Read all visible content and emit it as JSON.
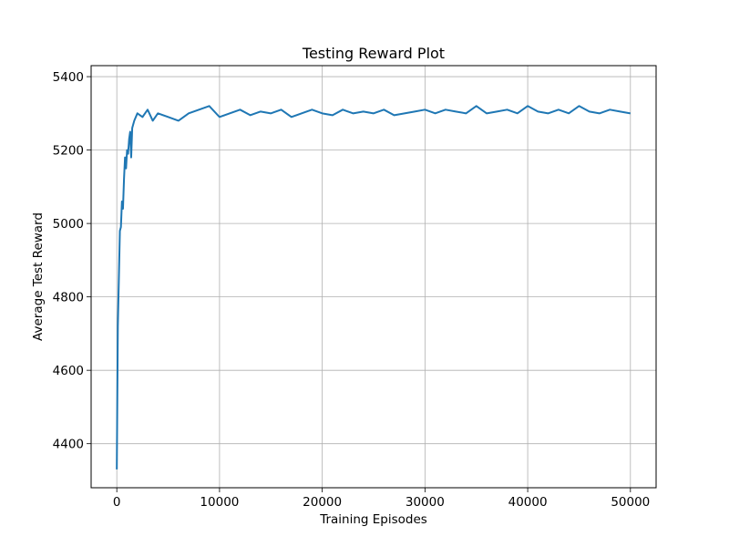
{
  "chart_data": {
    "type": "line",
    "title": "Testing Reward Plot",
    "xlabel": "Training Episodes",
    "ylabel": "Average Test Reward",
    "xlim": [
      -2500,
      52500
    ],
    "ylim": [
      4280,
      5430
    ],
    "x_ticks": [
      0,
      10000,
      20000,
      30000,
      40000,
      50000
    ],
    "y_ticks": [
      4400,
      4600,
      4800,
      5000,
      5200,
      5400
    ],
    "x_tick_labels": [
      "0",
      "10000",
      "20000",
      "30000",
      "40000",
      "50000"
    ],
    "y_tick_labels": [
      "4400",
      "4600",
      "4800",
      "5000",
      "5200",
      "5400"
    ],
    "grid": true,
    "legend": "none",
    "series_color": "#1f77b4",
    "series": [
      {
        "x": [
          0,
          100,
          200,
          300,
          400,
          500,
          600,
          700,
          800,
          900,
          1000,
          1100,
          1200,
          1300,
          1400,
          1500,
          1700,
          2000,
          2500,
          3000,
          3500,
          4000,
          5000,
          6000,
          7000,
          8000,
          9000,
          10000,
          11000,
          12000,
          13000,
          14000,
          15000,
          16000,
          17000,
          18000,
          19000,
          20000,
          21000,
          22000,
          23000,
          24000,
          25000,
          26000,
          27000,
          28000,
          29000,
          30000,
          31000,
          32000,
          33000,
          34000,
          35000,
          36000,
          37000,
          38000,
          39000,
          40000,
          41000,
          42000,
          43000,
          44000,
          45000,
          46000,
          47000,
          48000,
          49000,
          50000
        ],
        "values": [
          4330,
          4720,
          4850,
          4980,
          4990,
          5060,
          5040,
          5120,
          5180,
          5150,
          5200,
          5190,
          5230,
          5250,
          5180,
          5260,
          5280,
          5300,
          5290,
          5310,
          5280,
          5300,
          5290,
          5280,
          5300,
          5310,
          5320,
          5290,
          5300,
          5310,
          5295,
          5305,
          5300,
          5310,
          5290,
          5300,
          5310,
          5300,
          5295,
          5310,
          5300,
          5305,
          5300,
          5310,
          5295,
          5300,
          5305,
          5310,
          5300,
          5310,
          5305,
          5300,
          5320,
          5300,
          5305,
          5310,
          5300,
          5320,
          5305,
          5300,
          5310,
          5300,
          5320,
          5305,
          5300,
          5310,
          5305,
          5300
        ]
      }
    ]
  }
}
